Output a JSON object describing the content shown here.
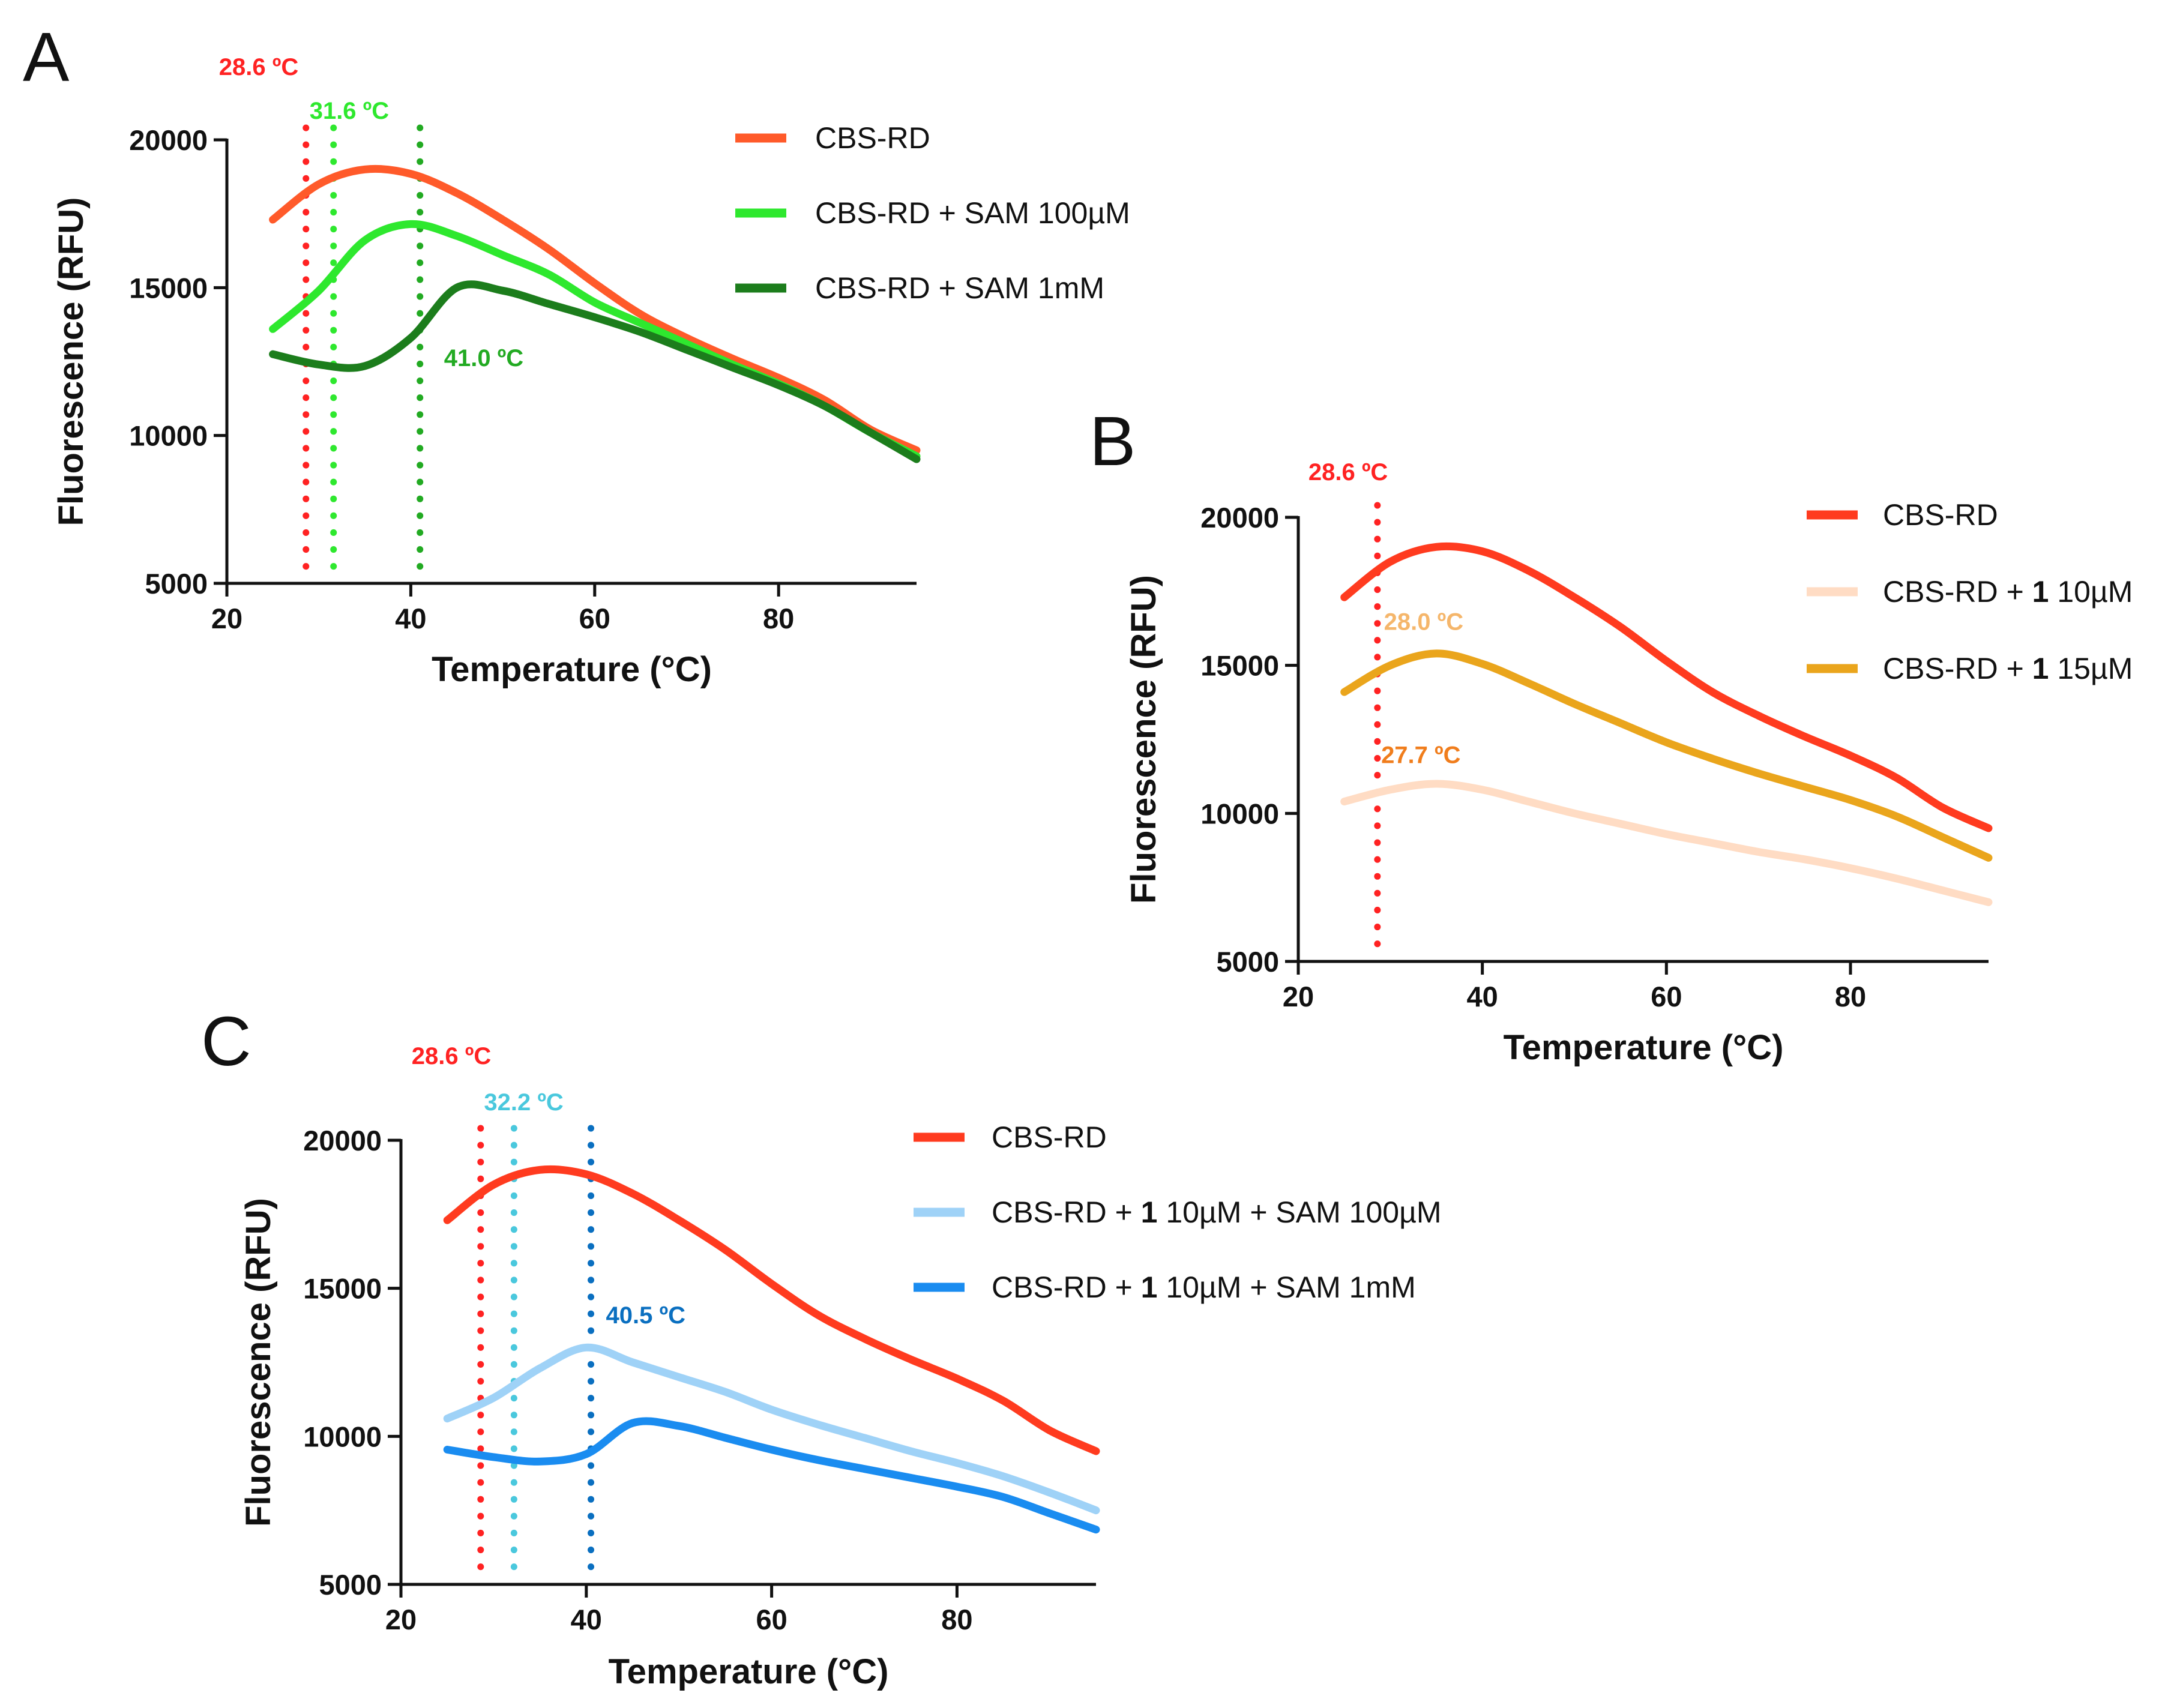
{
  "figure": {
    "panel_letters": [
      "A",
      "B",
      "C"
    ]
  },
  "chart_data": [
    {
      "panel": "A",
      "type": "line",
      "xlabel": "Temperature (°C)",
      "ylabel": "Fluorescence (RFU)",
      "xlim": [
        20,
        95
      ],
      "ylim": [
        5000,
        20000
      ],
      "xticks": [
        20,
        40,
        60,
        80
      ],
      "yticks": [
        5000,
        10000,
        15000,
        20000
      ],
      "series": [
        {
          "name": "CBS-RD",
          "legend_parts": [
            {
              "text": "CBS-RD",
              "bold": false
            }
          ],
          "color": "#ff5a2a",
          "x": [
            25,
            30,
            35,
            40,
            45,
            50,
            55,
            60,
            65,
            70,
            75,
            80,
            85,
            90,
            95
          ],
          "y": [
            17300,
            18500,
            19000,
            18850,
            18200,
            17300,
            16300,
            15150,
            14100,
            13300,
            12600,
            11950,
            11200,
            10200,
            9500
          ]
        },
        {
          "name": "CBS-RD + SAM 100µM",
          "legend_parts": [
            {
              "text": "CBS-RD + SAM 100µM",
              "bold": false
            }
          ],
          "color": "#2ee82e",
          "x": [
            25,
            30,
            35,
            40,
            45,
            50,
            55,
            60,
            65,
            70,
            75,
            80,
            85,
            90,
            95
          ],
          "y": [
            13600,
            14900,
            16600,
            17150,
            16750,
            16100,
            15450,
            14500,
            13800,
            13100,
            12400,
            11750,
            11000,
            10100,
            9300
          ]
        },
        {
          "name": "CBS-RD + SAM 1mM",
          "legend_parts": [
            {
              "text": "CBS-RD + SAM 1mM",
              "bold": false
            }
          ],
          "color": "#1c7d1c",
          "x": [
            25,
            30,
            35,
            40,
            45,
            50,
            55,
            60,
            65,
            70,
            75,
            80,
            85,
            90,
            95
          ],
          "y": [
            12750,
            12400,
            12350,
            13300,
            15000,
            14900,
            14450,
            14000,
            13500,
            12900,
            12300,
            11700,
            11000,
            10100,
            9200
          ]
        }
      ],
      "vlines": [
        {
          "x": 28.6,
          "label": "28.6 ºC",
          "color": "#ff2222"
        },
        {
          "x": 31.6,
          "label": "31.6 ºC",
          "color": "#2ee82e"
        },
        {
          "x": 41.0,
          "label": "41.0 ºC",
          "color": "#22aa22"
        }
      ]
    },
    {
      "panel": "B",
      "type": "line",
      "xlabel": "Temperature (°C)",
      "ylabel": "Fluorescence (RFU)",
      "xlim": [
        20,
        95
      ],
      "ylim": [
        5000,
        20000
      ],
      "xticks": [
        20,
        40,
        60,
        80
      ],
      "yticks": [
        5000,
        10000,
        15000,
        20000
      ],
      "series": [
        {
          "name": "CBS-RD",
          "legend_parts": [
            {
              "text": "CBS-RD",
              "bold": false
            }
          ],
          "color": "#ff3b1f",
          "x": [
            25,
            30,
            35,
            40,
            45,
            50,
            55,
            60,
            65,
            70,
            75,
            80,
            85,
            90,
            95
          ],
          "y": [
            17300,
            18500,
            19000,
            18850,
            18200,
            17300,
            16300,
            15150,
            14100,
            13300,
            12600,
            11950,
            11200,
            10200,
            9500
          ]
        },
        {
          "name": "CBS-RD + 1 10µM",
          "legend_parts": [
            {
              "text": "CBS-RD + ",
              "bold": false
            },
            {
              "text": "1",
              "bold": true
            },
            {
              "text": " 10µM",
              "bold": false
            }
          ],
          "color": "#ffdcc4",
          "x": [
            25,
            30,
            35,
            40,
            45,
            50,
            55,
            60,
            65,
            70,
            75,
            80,
            85,
            90,
            95
          ],
          "y": [
            10400,
            10800,
            11000,
            10800,
            10400,
            10000,
            9650,
            9300,
            9000,
            8700,
            8450,
            8150,
            7800,
            7400,
            7000
          ]
        },
        {
          "name": "CBS-RD + 1 15µM",
          "legend_parts": [
            {
              "text": "CBS-RD + ",
              "bold": false
            },
            {
              "text": "1",
              "bold": true
            },
            {
              "text": " 15µM",
              "bold": false
            }
          ],
          "color": "#eaa51c",
          "x": [
            25,
            30,
            35,
            40,
            45,
            50,
            55,
            60,
            65,
            70,
            75,
            80,
            85,
            90,
            95
          ],
          "y": [
            14100,
            15000,
            15400,
            15050,
            14400,
            13700,
            13050,
            12400,
            11850,
            11350,
            10900,
            10450,
            9900,
            9200,
            8500
          ]
        }
      ],
      "vlines": [
        {
          "x": 28.6,
          "label": "28.6 ºC",
          "color": "#ff2222"
        }
      ],
      "annotations": [
        {
          "text": "28.0 ºC",
          "x": 28.0,
          "y": 16200,
          "color": "#f5b66b"
        },
        {
          "text": "27.7 ºC",
          "x": 27.7,
          "y": 11700,
          "color": "#f07d1c"
        }
      ]
    },
    {
      "panel": "C",
      "type": "line",
      "xlabel": "Temperature (°C)",
      "ylabel": "Fluorescence (RFU)",
      "xlim": [
        20,
        95
      ],
      "ylim": [
        5000,
        20000
      ],
      "xticks": [
        20,
        40,
        60,
        80
      ],
      "yticks": [
        5000,
        10000,
        15000,
        20000
      ],
      "series": [
        {
          "name": "CBS-RD",
          "legend_parts": [
            {
              "text": "CBS-RD",
              "bold": false
            }
          ],
          "color": "#ff3b1f",
          "x": [
            25,
            30,
            35,
            40,
            45,
            50,
            55,
            60,
            65,
            70,
            75,
            80,
            85,
            90,
            95
          ],
          "y": [
            17300,
            18500,
            19000,
            18850,
            18200,
            17300,
            16300,
            15150,
            14100,
            13300,
            12600,
            11950,
            11200,
            10200,
            9500
          ]
        },
        {
          "name": "CBS-RD + 1 10µM + SAM 100µM",
          "legend_parts": [
            {
              "text": "CBS-RD + ",
              "bold": false
            },
            {
              "text": "1",
              "bold": true
            },
            {
              "text": " 10µM + SAM 100µM",
              "bold": false
            }
          ],
          "color": "#9fd2f7",
          "x": [
            25,
            30,
            35,
            40,
            45,
            50,
            55,
            60,
            65,
            70,
            75,
            80,
            85,
            90,
            95
          ],
          "y": [
            10600,
            11300,
            12300,
            13000,
            12500,
            12000,
            11500,
            10900,
            10400,
            9950,
            9500,
            9100,
            8650,
            8100,
            7500
          ]
        },
        {
          "name": "CBS-RD + 1 10µM + SAM 1mM",
          "legend_parts": [
            {
              "text": "CBS-RD + ",
              "bold": false
            },
            {
              "text": "1",
              "bold": true
            },
            {
              "text": " 10µM + SAM 1mM",
              "bold": false
            }
          ],
          "color": "#1a8cf0",
          "x": [
            25,
            30,
            35,
            40,
            45,
            50,
            55,
            60,
            65,
            70,
            75,
            80,
            85,
            90,
            95
          ],
          "y": [
            9550,
            9300,
            9150,
            9400,
            10450,
            10350,
            9950,
            9550,
            9200,
            8900,
            8600,
            8300,
            7950,
            7400,
            6850
          ]
        }
      ],
      "vlines": [
        {
          "x": 28.6,
          "label": "28.6 ºC",
          "color": "#ff2222"
        },
        {
          "x": 32.2,
          "label": "32.2 ºC",
          "color": "#4ac8dd"
        },
        {
          "x": 40.5,
          "label": "40.5 ºC",
          "color": "#0a6fc0"
        }
      ]
    }
  ]
}
